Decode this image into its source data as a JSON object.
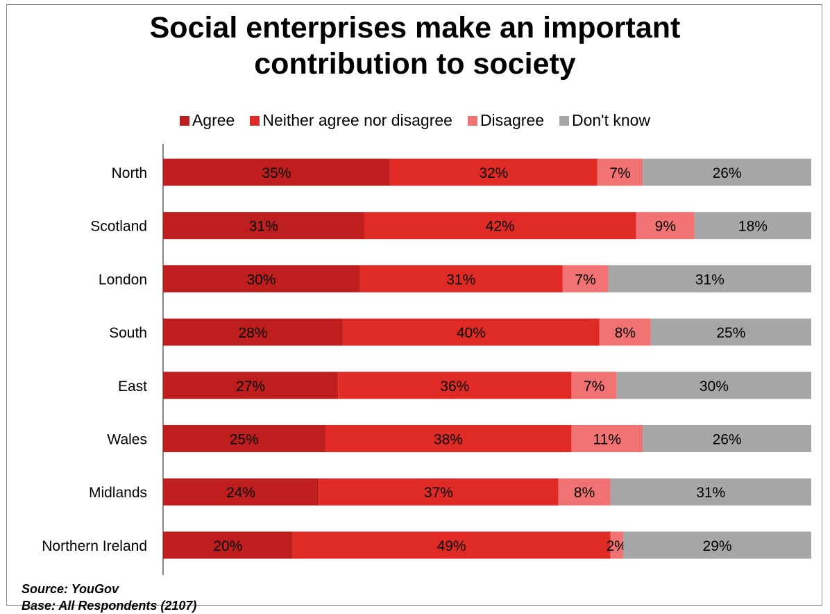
{
  "chart_data": {
    "type": "bar",
    "orientation": "horizontal",
    "stacked": true,
    "title": "Social enterprises make an important contribution to society",
    "categories": [
      "North",
      "Scotland",
      "London",
      "South",
      "East",
      "Wales",
      "Midlands",
      "Northern Ireland"
    ],
    "series": [
      {
        "name": "Agree",
        "color": "#be1e1e",
        "values": [
          35,
          31,
          30,
          28,
          27,
          25,
          24,
          20
        ]
      },
      {
        "name": "Neither agree nor disagree",
        "color": "#e02a26",
        "values": [
          32,
          42,
          31,
          40,
          36,
          38,
          37,
          49
        ]
      },
      {
        "name": "Disagree",
        "color": "#f07272",
        "values": [
          7,
          9,
          7,
          8,
          7,
          11,
          8,
          2
        ]
      },
      {
        "name": "Don't know",
        "color": "#a6a6a8",
        "values": [
          26,
          18,
          31,
          25,
          30,
          26,
          31,
          29
        ]
      }
    ],
    "data_labels": [
      [
        "35%",
        "32%",
        "7%",
        "26%"
      ],
      [
        "31%",
        "42%",
        "9%",
        "18%"
      ],
      [
        "30%",
        "31%",
        "7%",
        "31%"
      ],
      [
        "28%",
        "40%",
        "8%",
        "25%"
      ],
      [
        "27%",
        "36%",
        "7%",
        "30%"
      ],
      [
        "25%",
        "38%",
        "11%",
        "26%"
      ],
      [
        "24%",
        "37%",
        "8%",
        "31%"
      ],
      [
        "20%",
        "49%",
        "2%",
        "29%"
      ]
    ],
    "legend_position": "top",
    "grid": false
  },
  "footer": {
    "source": "Source: YouGov",
    "base": "Base: All Respondents (2107)"
  }
}
